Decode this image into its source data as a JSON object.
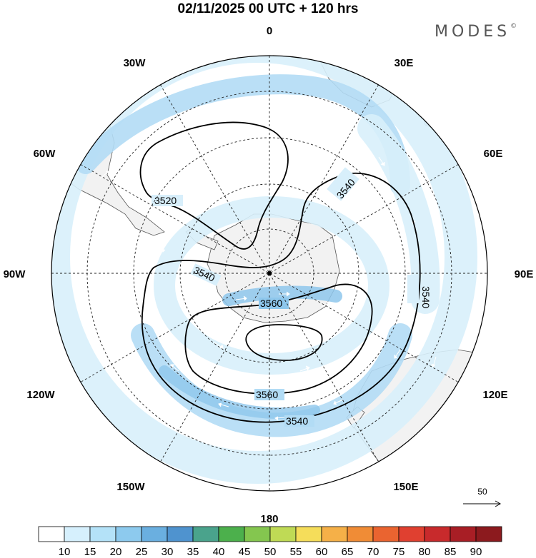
{
  "title": "02/11/2025  00 UTC  + 120 hrs",
  "brand": "MODES",
  "brand_mark": "©",
  "longitude_labels": {
    "north": "0",
    "south": "180",
    "west": "90W",
    "east": "90E",
    "nw1": "30W",
    "nw2": "60W",
    "ne1": "30E",
    "ne2": "60E",
    "sw1": "120W",
    "sw2": "150W",
    "se1": "120E",
    "se2": "150E"
  },
  "contour_labels": {
    "c3520": "3520",
    "c3540_ne": "3540",
    "c3540_w": "3540",
    "c3540_e": "3540",
    "c3540_s": "3540",
    "c3560_inner": "3560",
    "c3560_outer": "3560"
  },
  "vector_reference": {
    "value": "50"
  },
  "colorbar": {
    "ticks": [
      "10",
      "15",
      "20",
      "25",
      "30",
      "35",
      "40",
      "45",
      "50",
      "55",
      "60",
      "65",
      "70",
      "75",
      "80",
      "85",
      "90"
    ],
    "colors": [
      "#ffffff",
      "#d6f0fd",
      "#b4e2f8",
      "#8dcaee",
      "#6aafe0",
      "#4f93cf",
      "#4aa38c",
      "#4cb04c",
      "#84c64f",
      "#bfda55",
      "#f5dd5a",
      "#f5b048",
      "#f08c36",
      "#ea6430",
      "#e04030",
      "#c82a2c",
      "#a81e25",
      "#8c1a1e"
    ]
  },
  "colors": {
    "wind_light": "#d8effb",
    "wind_mid": "#b2dcf5",
    "wind_strong": "#8ec7ec",
    "land": "#f2f2f2"
  }
}
